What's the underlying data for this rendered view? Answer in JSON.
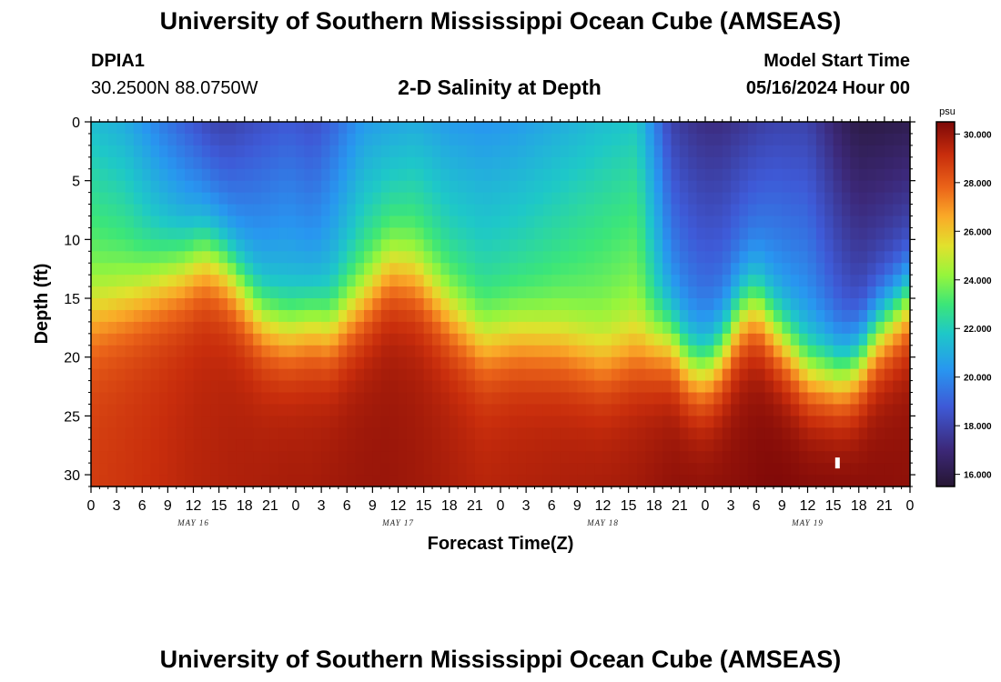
{
  "header": {
    "title": "University of Southern Mississippi Ocean Cube (AMSEAS)",
    "station_id": "DPIA1",
    "station_coords": "30.2500N  88.0750W",
    "subtitle": "2-D Salinity at Depth",
    "model_start_label": "Model Start Time",
    "model_start_value": "05/16/2024 Hour 00"
  },
  "footer": {
    "title": "University of Southern Mississippi Ocean Cube (AMSEAS)"
  },
  "chart_data": {
    "type": "heatmap",
    "title": "2-D Salinity at Depth",
    "xlabel": "Forecast Time(Z)",
    "ylabel": "Depth (ft)",
    "x_ticks": [
      "0",
      "3",
      "6",
      "9",
      "12",
      "15",
      "18",
      "21",
      "0",
      "3",
      "6",
      "9",
      "12",
      "15",
      "18",
      "21",
      "0",
      "3",
      "6",
      "9",
      "12",
      "15",
      "18",
      "21",
      "0",
      "3",
      "6",
      "9",
      "12",
      "15",
      "18",
      "21",
      "0"
    ],
    "x_range_hours": [
      0,
      96
    ],
    "date_labels": [
      {
        "label": "MAY 16",
        "hour": 12
      },
      {
        "label": "MAY 17",
        "hour": 36
      },
      {
        "label": "MAY 18",
        "hour": 60
      },
      {
        "label": "MAY 19",
        "hour": 84
      }
    ],
    "y_ticks": [
      0,
      5,
      10,
      15,
      20,
      25,
      30
    ],
    "ylim": [
      31,
      0
    ],
    "colorbar": {
      "unit": "psu",
      "min": 15.5,
      "max": 30.5,
      "ticks": [
        "30.000",
        "28.000",
        "26.000",
        "24.000",
        "22.000",
        "20.000",
        "18.000",
        "16.000"
      ],
      "tick_values": [
        30,
        28,
        26,
        24,
        22,
        20,
        18,
        16
      ]
    },
    "profile_hours": [
      0,
      4,
      8,
      11,
      13,
      14,
      16,
      20,
      23,
      26,
      28,
      32,
      35,
      38,
      42,
      46,
      50,
      55,
      60,
      64,
      68,
      70,
      72,
      74,
      76,
      78,
      80,
      84,
      88,
      90,
      92,
      96
    ],
    "surface_salinity": [
      21.5,
      21.0,
      19.8,
      19.0,
      18.5,
      18.2,
      18.0,
      18.5,
      18.8,
      18.5,
      19.0,
      20.5,
      20.8,
      21.0,
      20.5,
      20.3,
      20.5,
      21.0,
      21.5,
      21.8,
      18.0,
      17.5,
      17.2,
      17.2,
      17.5,
      17.8,
      18.0,
      18.0,
      16.5,
      16.0,
      16.0,
      16.2
    ],
    "halocline_depth_ft": [
      16.0,
      15.0,
      13.5,
      12.5,
      11.5,
      11.5,
      12.5,
      16.5,
      17.5,
      17.0,
      17.5,
      15.0,
      12.5,
      13.0,
      16.0,
      18.5,
      18.0,
      18.5,
      20.0,
      19.0,
      18.5,
      20.5,
      21.0,
      19.5,
      16.5,
      15.5,
      17.5,
      21.0,
      21.5,
      20.5,
      18.0,
      15.0
    ],
    "deep_salinity": [
      28.8,
      29.0,
      29.2,
      29.4,
      29.5,
      29.5,
      29.6,
      29.7,
      29.8,
      29.8,
      29.9,
      30.0,
      30.0,
      29.9,
      29.7,
      29.5,
      29.6,
      29.7,
      29.8,
      29.9,
      30.2,
      30.3,
      30.3,
      30.3,
      30.3,
      30.4,
      30.5,
      30.5,
      30.5,
      30.4,
      30.3,
      30.2
    ],
    "marker": {
      "hour": 87.5,
      "depth_ft": 29.0
    }
  }
}
